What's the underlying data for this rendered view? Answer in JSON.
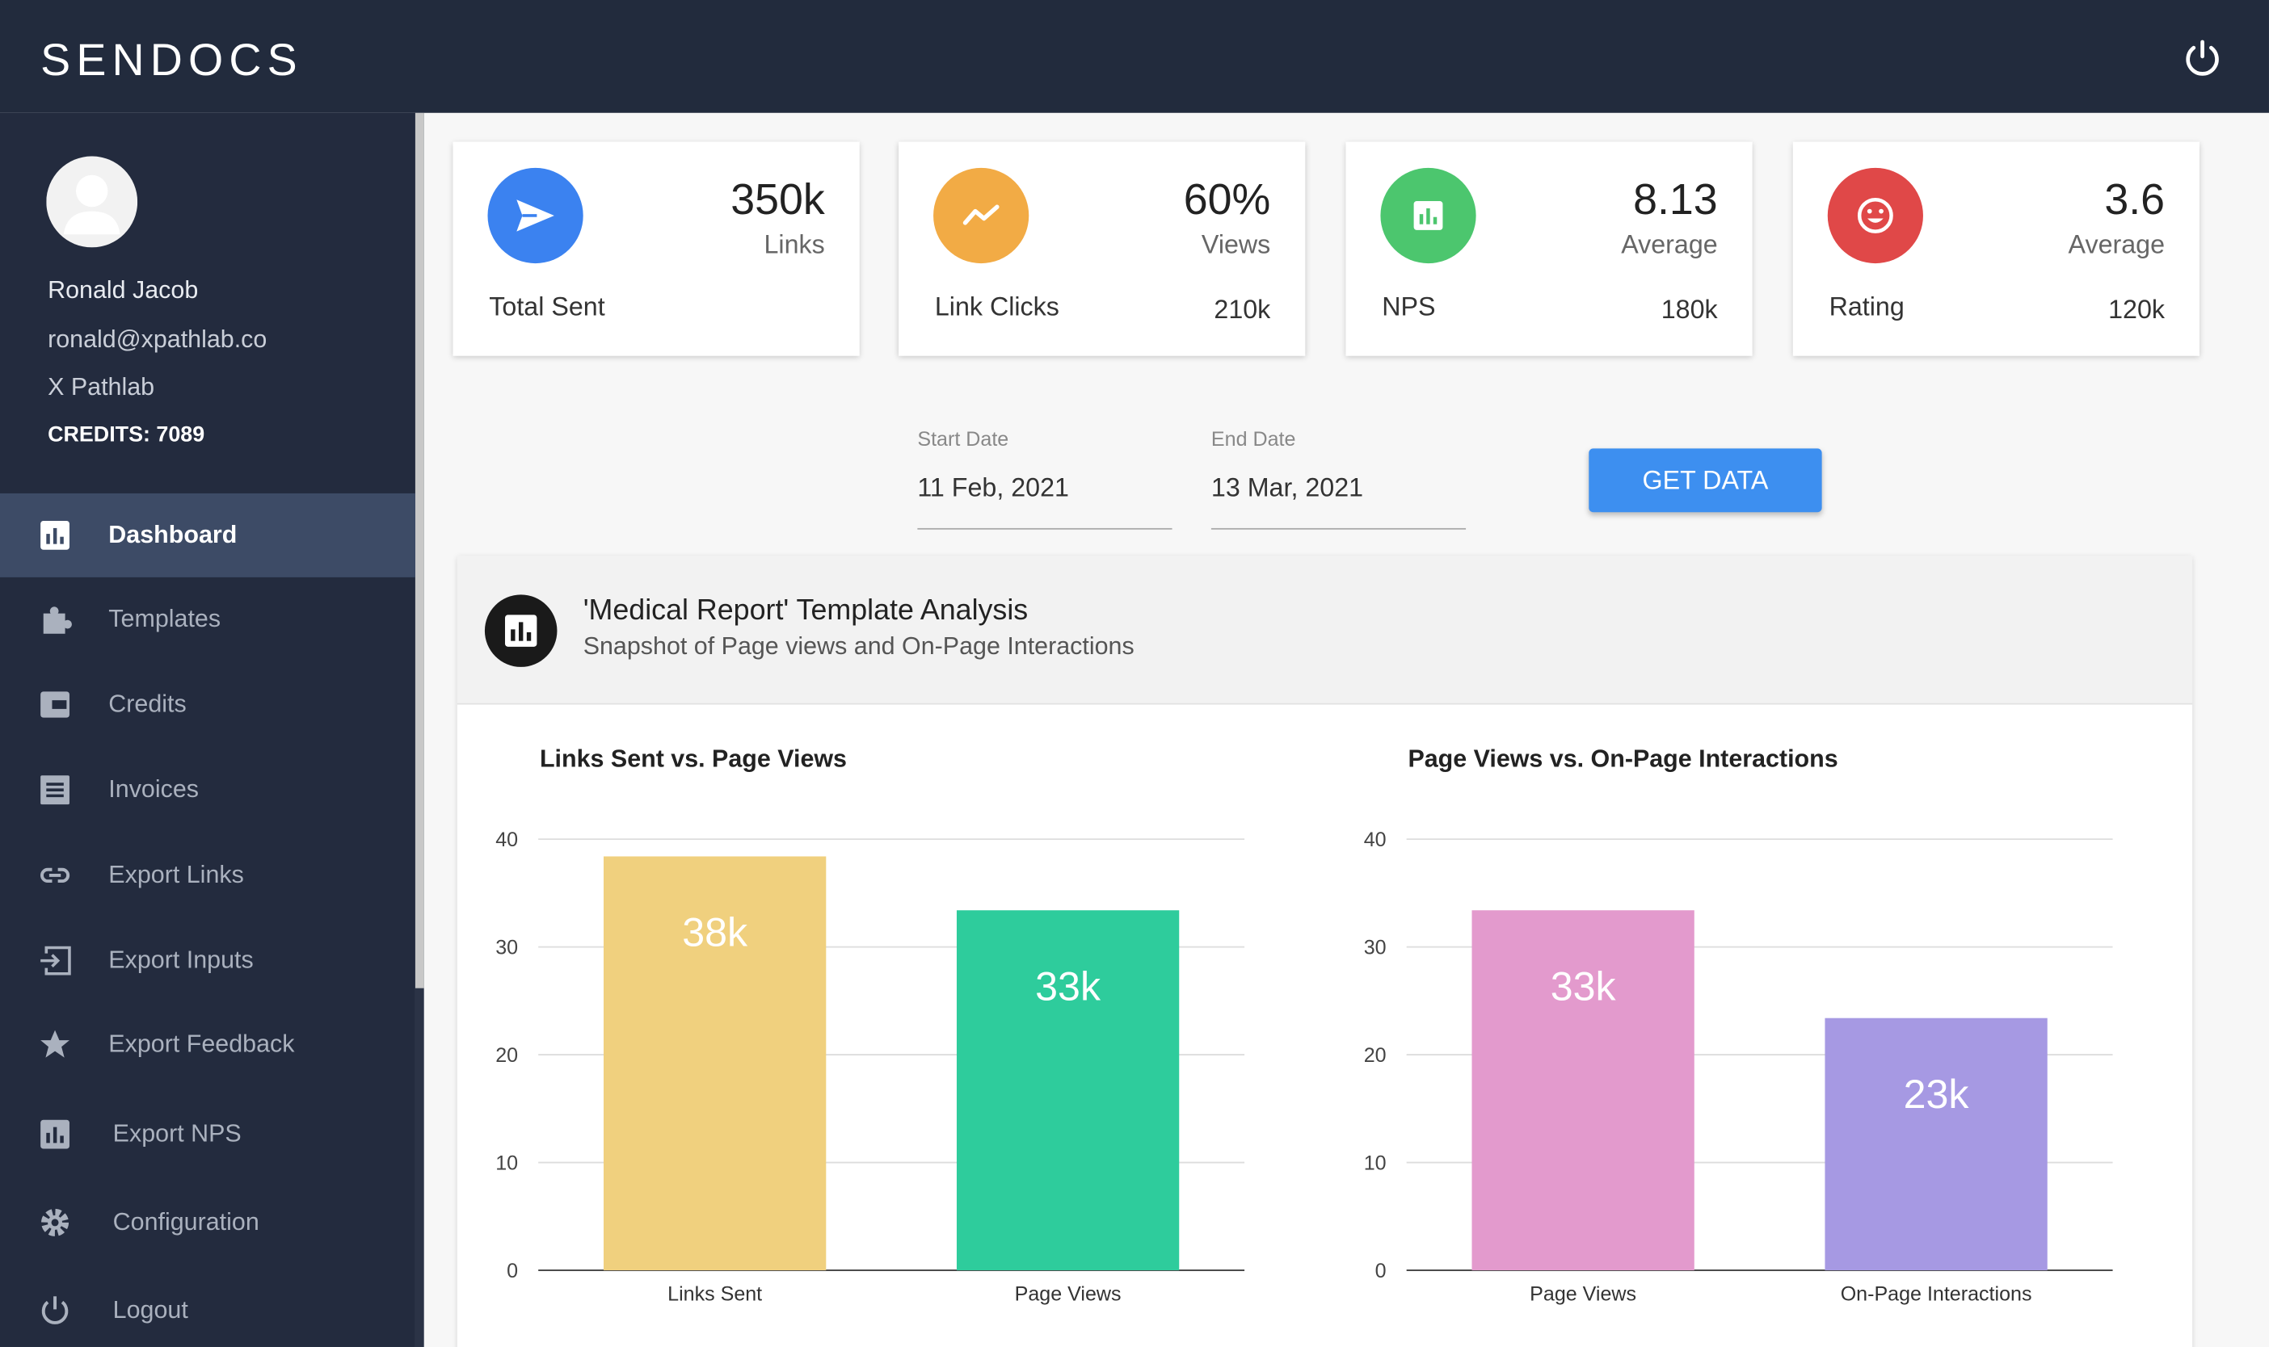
{
  "header": {
    "brand": "SENDOCS"
  },
  "profile": {
    "name": "Ronald Jacob",
    "email": "ronald@xpathlab.co",
    "company": "X Pathlab",
    "credits": "CREDITS: 7089"
  },
  "nav": [
    "Dashboard",
    "Templates",
    "Credits",
    "Invoices",
    "Export Links",
    "Export Inputs",
    "Export Feedback",
    "Export NPS",
    "Configuration",
    "Logout"
  ],
  "cards": [
    {
      "value": "350k",
      "unit": "Links",
      "label": "Total Sent"
    },
    {
      "value": "60%",
      "unit": "Views",
      "label": "Link Clicks",
      "extra": "210k"
    },
    {
      "value": "8.13",
      "unit": "Average",
      "label": "NPS",
      "extra": "180k"
    },
    {
      "value": "3.6",
      "unit": "Average",
      "label": "Rating",
      "extra": "120k"
    }
  ],
  "filters": {
    "start_label": "Start Date",
    "start_value": "11 Feb, 2021",
    "end_label": "End Date",
    "end_value": "13 Mar, 2021",
    "button": "GET DATA"
  },
  "panel": {
    "title": "'Medical Report' Template Analysis",
    "subtitle": "Snapshot of Page views and On-Page Interactions"
  },
  "chart_data": [
    {
      "type": "bar",
      "title": "Links Sent vs. Page Views",
      "categories": [
        "Links Sent",
        "Page Views"
      ],
      "values": [
        38.4,
        33.4
      ],
      "value_labels": [
        "38k",
        "33k"
      ],
      "colors": [
        "#f0d07e",
        "#2ecc9c"
      ],
      "ylim": [
        0,
        40
      ],
      "yticks": [
        0,
        10,
        20,
        30,
        40
      ],
      "grid": true
    },
    {
      "type": "bar",
      "title": "Page Views vs. On-Page Interactions",
      "categories": [
        "Page Views",
        "On-Page Interactions"
      ],
      "values": [
        33.4,
        23.4
      ],
      "value_labels": [
        "33k",
        "23k"
      ],
      "colors": [
        "#e39acd",
        "#a699e3"
      ],
      "ylim": [
        0,
        40
      ],
      "yticks": [
        0,
        10,
        20,
        30,
        40
      ],
      "grid": true
    }
  ]
}
